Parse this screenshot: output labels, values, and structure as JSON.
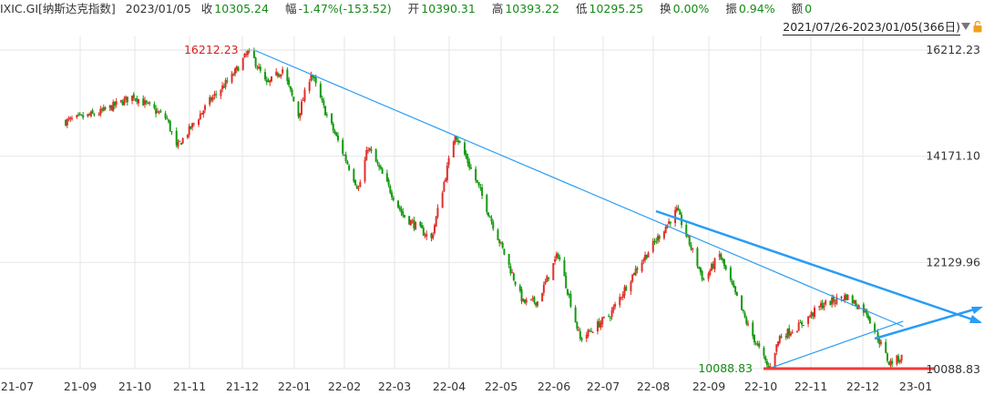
{
  "header": {
    "symbol": "IXIC.GI[纳斯达克指数]",
    "date": "2023/01/05",
    "close_label": "收",
    "close": "10305.24",
    "change_label": "幅",
    "change": "-1.47%(-153.52)",
    "open_label": "开",
    "open": "10390.31",
    "high_label": "高",
    "high": "10393.22",
    "low_label": "低",
    "low": "10295.25",
    "turnover_label": "换",
    "turnover": "0.00%",
    "amplitude_label": "振",
    "amplitude": "0.94%",
    "amount_label": "额",
    "amount": "0"
  },
  "range_selector": "2021/07/26-2023/01/05(366日)",
  "colors": {
    "up": "#e0302a",
    "down": "#14990f",
    "trendline": "#2a9df4",
    "support": "#ee3b3b",
    "grid": "#e6e6e6"
  },
  "annotations": {
    "high_label": "16212.23",
    "low_label": "10088.83"
  },
  "chart_data": {
    "type": "candlestick",
    "ylim": [
      10088.83,
      16212.23
    ],
    "y_ticks": [
      "16212.23",
      "14171.10",
      "12129.96",
      "10088.83"
    ],
    "x_ticks": [
      "21-07",
      "21-09",
      "21-10",
      "21-11",
      "21-12",
      "22-01",
      "22-02",
      "22-03",
      "22-04",
      "22-05",
      "22-06",
      "22-07",
      "22-08",
      "22-09",
      "22-10",
      "22-11",
      "22-12",
      "23-01"
    ],
    "path_dates": [
      "2021-07-26",
      "2021-08-16",
      "2021-09-07",
      "2021-09-28",
      "2021-10-04",
      "2021-10-25",
      "2021-11-08",
      "2021-11-19",
      "2021-11-30",
      "2021-12-10",
      "2021-12-20",
      "2021-12-28",
      "2022-01-05",
      "2022-01-27",
      "2022-02-02",
      "2022-02-24",
      "2022-03-14",
      "2022-03-29",
      "2022-04-12",
      "2022-04-29",
      "2022-05-11",
      "2022-05-20",
      "2022-06-02",
      "2022-06-16",
      "2022-07-05",
      "2022-07-20",
      "2022-08-16",
      "2022-09-02",
      "2022-09-12",
      "2022-09-30",
      "2022-10-13",
      "2022-10-20",
      "2022-11-01",
      "2022-11-15",
      "2022-12-01",
      "2022-12-14",
      "2022-12-28",
      "2023-01-05"
    ],
    "path_closes": [
      14840,
      15000,
      15330,
      14890,
      14330,
      15230,
      15700,
      16212,
      15540,
      15850,
      14960,
      15780,
      15100,
      13540,
      14350,
      13040,
      12580,
      14620,
      13640,
      12300,
      11360,
      11380,
      12300,
      10650,
      11130,
      11940,
      13130,
      11780,
      12280,
      10900,
      10090,
      10700,
      10900,
      11300,
      11480,
      11170,
      10200,
      10305
    ],
    "trendlines": [
      {
        "from": [
          "2021-11-22",
          16212.23
        ],
        "to": [
          "2023-01-06",
          10900
        ]
      },
      {
        "from": [
          "2022-10-13",
          10088.83
        ],
        "to": [
          "2023-01-06",
          11000
        ]
      }
    ],
    "support_level": 10088.83
  }
}
